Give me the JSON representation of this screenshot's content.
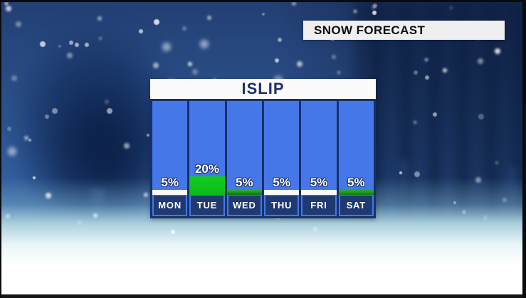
{
  "title_banner": {
    "label": "SNOW FORECAST"
  },
  "chart_data": {
    "type": "bar",
    "title": "ISLIP",
    "unit": "%",
    "ylim": [
      0,
      100
    ],
    "categories": [
      "MON",
      "TUE",
      "WED",
      "THU",
      "FRI",
      "SAT"
    ],
    "values": [
      5,
      20,
      5,
      5,
      5,
      5
    ],
    "days": [
      {
        "label": "MON",
        "value": 5,
        "display": "5%",
        "bar_color": "white"
      },
      {
        "label": "TUE",
        "value": 20,
        "display": "20%",
        "bar_color": "green_bright"
      },
      {
        "label": "WED",
        "value": 5,
        "display": "5%",
        "bar_color": "green_dark"
      },
      {
        "label": "THU",
        "value": 5,
        "display": "5%",
        "bar_color": "white"
      },
      {
        "label": "FRI",
        "value": 5,
        "display": "5%",
        "bar_color": "white"
      },
      {
        "label": "SAT",
        "value": 5,
        "display": "5%",
        "bar_color": "green_mid"
      }
    ]
  },
  "colors": {
    "column_blue": "#4577E8",
    "table_border_navy": "#16316B",
    "day_label_navy": "#1F3A72",
    "header_text_navy": "#1C2F6D",
    "banner_bg": "#EFEFEF",
    "banner_text": "#0D0D10",
    "bar_white": [
      "#FFFFFF",
      "#F6F6F6"
    ],
    "bar_green_bright": [
      "#15CB21",
      "#0ABB1C"
    ],
    "bar_green_dark": [
      "#2FB32F",
      "#0A7113"
    ],
    "bar_green_mid": [
      "#29AD30",
      "#0E7D18"
    ]
  }
}
